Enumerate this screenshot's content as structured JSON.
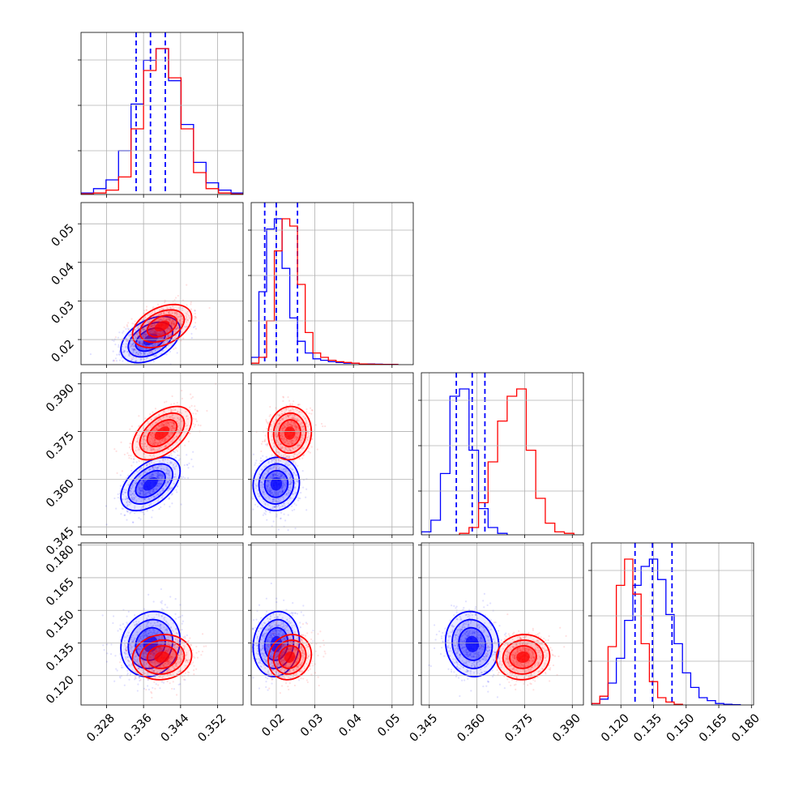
{
  "chart_data": {
    "type": "corner",
    "grid": true,
    "parameters": [
      {
        "id": "p1",
        "range": [
          0.3225,
          0.3575
        ],
        "ticks": [
          0.328,
          0.336,
          0.344,
          0.352
        ],
        "tick_labels": [
          "0.328",
          "0.336",
          "0.344",
          "0.352"
        ]
      },
      {
        "id": "p2",
        "range": [
          0.0135,
          0.0555
        ],
        "ticks": [
          0.02,
          0.03,
          0.04,
          0.05
        ],
        "tick_labels": [
          "0.02",
          "0.03",
          "0.04",
          "0.05"
        ]
      },
      {
        "id": "p3",
        "range": [
          0.3425,
          0.3935
        ],
        "ticks": [
          0.345,
          0.36,
          0.375,
          0.39
        ],
        "tick_labels": [
          "0.345",
          "0.360",
          "0.375",
          "0.390"
        ]
      },
      {
        "id": "p4",
        "range": [
          0.1065,
          0.181
        ],
        "ticks": [
          0.12,
          0.135,
          0.15,
          0.165,
          0.18
        ],
        "tick_labels": [
          "0.120",
          "0.135",
          "0.150",
          "0.165",
          "0.180"
        ]
      }
    ],
    "series": [
      {
        "color": "#0000ff",
        "means": [
          0.3375,
          0.02,
          0.3585,
          0.1345
        ],
        "sigmas": [
          0.0032,
          0.003,
          0.0042,
          0.0075
        ],
        "correlations": {
          "1-0": 0.42,
          "2-0": 0.48,
          "2-1": 0.05,
          "3-0": 0.12,
          "3-1": 0.1,
          "3-2": -0.08
        },
        "quantiles": [
          [
            0.3344,
            0.3375,
            0.3407
          ],
          [
            0.017,
            0.02,
            0.0255
          ],
          [
            0.3535,
            0.3585,
            0.3625
          ],
          [
            0.1265,
            0.1345,
            0.1435
          ]
        ],
        "histograms": [
          {
            "edges": [
              0.3225,
              0.3252,
              0.3279,
              0.3306,
              0.3333,
              0.336,
              0.3387,
              0.3414,
              0.3441,
              0.3468,
              0.3495,
              0.3522,
              0.3549,
              0.3575
            ],
            "density": [
              0.01,
              0.04,
              0.1,
              0.3,
              0.62,
              0.92,
              1.0,
              0.78,
              0.48,
              0.22,
              0.08,
              0.03,
              0.01
            ]
          },
          {
            "edges": [
              0.0135,
              0.0155,
              0.0175,
              0.0195,
              0.0215,
              0.0235,
              0.0255,
              0.0275,
              0.0295,
              0.0315,
              0.0335,
              0.0355,
              0.0375,
              0.0395,
              0.0415,
              0.0435,
              0.0455,
              0.0475,
              0.0495,
              0.0515
            ],
            "density": [
              0.05,
              0.5,
              0.93,
              1.0,
              0.66,
              0.32,
              0.16,
              0.08,
              0.04,
              0.03,
              0.02,
              0.015,
              0.01,
              0.01,
              0.005,
              0.005,
              0.003,
              0.002,
              0.002
            ]
          },
          {
            "edges": [
              0.3425,
              0.3455,
              0.3485,
              0.3515,
              0.3545,
              0.3575,
              0.3605,
              0.3635,
              0.3665,
              0.3695
            ],
            "density": [
              0.02,
              0.1,
              0.42,
              0.95,
              1.0,
              0.58,
              0.18,
              0.05,
              0.01
            ]
          },
          {
            "edges": [
              0.1065,
              0.1103,
              0.1141,
              0.1179,
              0.1217,
              0.1255,
              0.1293,
              0.1331,
              0.1369,
              0.1407,
              0.1445,
              0.1483,
              0.1521,
              0.1559,
              0.1597,
              0.1635,
              0.1673,
              0.1711,
              0.1749
            ],
            "density": [
              0.01,
              0.04,
              0.15,
              0.32,
              0.58,
              0.82,
              0.95,
              1.0,
              0.86,
              0.62,
              0.42,
              0.22,
              0.12,
              0.05,
              0.03,
              0.01,
              0.005,
              0.002
            ]
          }
        ]
      },
      {
        "color": "#ff0000",
        "means": [
          0.34,
          0.0235,
          0.3745,
          0.1285
        ],
        "sigmas": [
          0.0032,
          0.0028,
          0.0042,
          0.0052
        ],
        "correlations": {
          "1-0": 0.4,
          "2-0": 0.5,
          "2-1": 0.05,
          "3-0": 0.08,
          "3-1": 0.12,
          "3-2": 0.05
        },
        "histograms": [
          {
            "edges": [
              0.3225,
              0.3252,
              0.3279,
              0.3306,
              0.3333,
              0.336,
              0.3387,
              0.3414,
              0.3441,
              0.3468,
              0.3495,
              0.3522,
              0.3549,
              0.3575
            ],
            "density": [
              0.005,
              0.01,
              0.03,
              0.12,
              0.45,
              0.85,
              1.0,
              0.8,
              0.45,
              0.15,
              0.04,
              0.01,
              0.003
            ]
          },
          {
            "edges": [
              0.0135,
              0.0155,
              0.0175,
              0.0195,
              0.0215,
              0.0235,
              0.0255,
              0.0275,
              0.0295,
              0.0315,
              0.0335,
              0.0355,
              0.0375,
              0.0395,
              0.0415,
              0.0435,
              0.0455,
              0.0475,
              0.0495,
              0.0515
            ],
            "density": [
              0.01,
              0.05,
              0.3,
              0.78,
              1.0,
              0.95,
              0.55,
              0.22,
              0.08,
              0.05,
              0.03,
              0.02,
              0.015,
              0.01,
              0.005,
              0.003,
              0.002,
              0.001,
              0.001
            ]
          },
          {
            "edges": [
              0.3545,
              0.3575,
              0.3605,
              0.3635,
              0.3665,
              0.3695,
              0.3725,
              0.3755,
              0.3785,
              0.3815,
              0.3845,
              0.3875,
              0.3905
            ],
            "density": [
              0.01,
              0.05,
              0.22,
              0.5,
              0.78,
              0.95,
              1.0,
              0.58,
              0.25,
              0.08,
              0.02,
              0.01
            ]
          },
          {
            "edges": [
              0.1065,
              0.1103,
              0.1141,
              0.1179,
              0.1217,
              0.1255,
              0.1293,
              0.1331,
              0.1369,
              0.1407,
              0.1445,
              0.1483
            ],
            "density": [
              0.01,
              0.06,
              0.4,
              0.82,
              1.0,
              0.76,
              0.42,
              0.16,
              0.05,
              0.02,
              0.005
            ]
          }
        ]
      }
    ]
  }
}
